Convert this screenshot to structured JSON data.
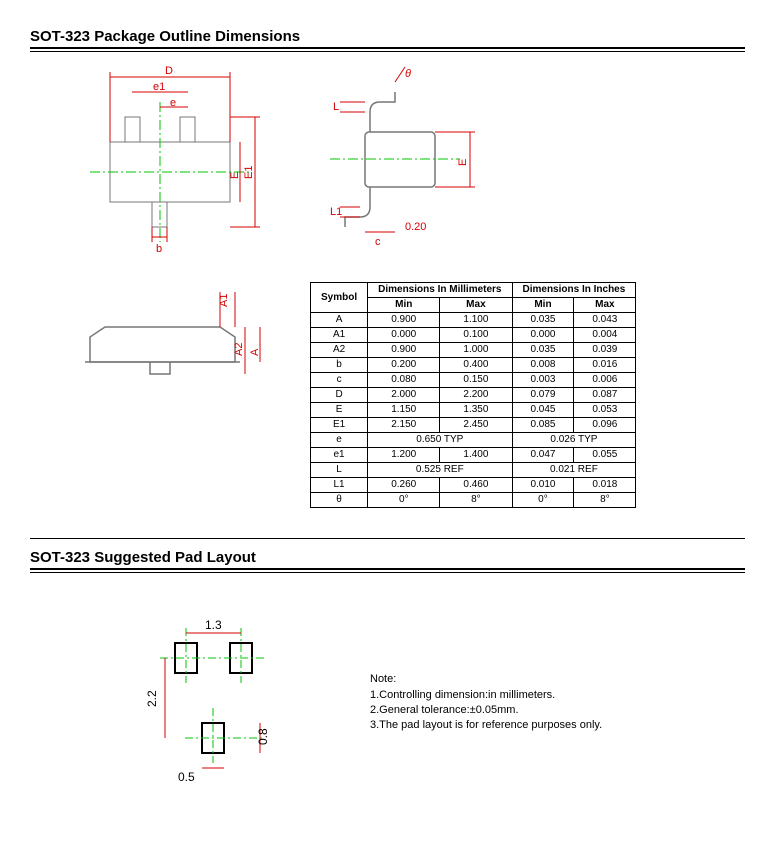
{
  "section1": {
    "title": "SOT-323 Package Outline Dimensions"
  },
  "section2": {
    "title": "SOT-323 Suggested Pad Layout"
  },
  "diagram": {
    "color_dim": "#d40000",
    "color_center": "#00c400",
    "color_outline": "#777777",
    "top": {
      "labels": {
        "D": "D",
        "e1": "e1",
        "e": "e",
        "b": "b",
        "E": "E",
        "E1": "E1"
      }
    },
    "side": {
      "labels": {
        "theta": "θ",
        "L": "L",
        "L1": "L1",
        "c": "c",
        "E": "E",
        "val020": "0.20"
      }
    },
    "height": {
      "labels": {
        "A": "A",
        "A1": "A1",
        "A2": "A2"
      }
    }
  },
  "table": {
    "hdr_symbol": "Symbol",
    "hdr_mm": "Dimensions In Millimeters",
    "hdr_in": "Dimensions In Inches",
    "hdr_min": "Min",
    "hdr_max": "Max",
    "rows": [
      {
        "sym": "A",
        "mm_min": "0.900",
        "mm_max": "1.100",
        "in_min": "0.035",
        "in_max": "0.043"
      },
      {
        "sym": "A1",
        "mm_min": "0.000",
        "mm_max": "0.100",
        "in_min": "0.000",
        "in_max": "0.004"
      },
      {
        "sym": "A2",
        "mm_min": "0.900",
        "mm_max": "1.000",
        "in_min": "0.035",
        "in_max": "0.039"
      },
      {
        "sym": "b",
        "mm_min": "0.200",
        "mm_max": "0.400",
        "in_min": "0.008",
        "in_max": "0.016"
      },
      {
        "sym": "c",
        "mm_min": "0.080",
        "mm_max": "0.150",
        "in_min": "0.003",
        "in_max": "0.006"
      },
      {
        "sym": "D",
        "mm_min": "2.000",
        "mm_max": "2.200",
        "in_min": "0.079",
        "in_max": "0.087"
      },
      {
        "sym": "E",
        "mm_min": "1.150",
        "mm_max": "1.350",
        "in_min": "0.045",
        "in_max": "0.053"
      },
      {
        "sym": "E1",
        "mm_min": "2.150",
        "mm_max": "2.450",
        "in_min": "0.085",
        "in_max": "0.096"
      }
    ],
    "row_e": {
      "sym": "e",
      "mm": "0.650 TYP",
      "in": "0.026 TYP"
    },
    "row_e1": {
      "sym": "e1",
      "mm_min": "1.200",
      "mm_max": "1.400",
      "in_min": "0.047",
      "in_max": "0.055"
    },
    "row_L": {
      "sym": "L",
      "mm": "0.525 REF",
      "in": "0.021 REF"
    },
    "row_L1": {
      "sym": "L1",
      "mm_min": "0.260",
      "mm_max": "0.460",
      "in_min": "0.010",
      "in_max": "0.018"
    },
    "row_th": {
      "sym": "θ",
      "mm_min": "0°",
      "mm_max": "8°",
      "in_min": "0°",
      "in_max": "8°"
    }
  },
  "pad": {
    "d13": "1.3",
    "d22": "2.2",
    "d08": "0.8",
    "d05": "0.5"
  },
  "notes": {
    "title": "Note:",
    "n1": "1.Controlling dimension:in millimeters.",
    "n2": "2.General tolerance:±0.05mm.",
    "n3": "3.The pad layout is for reference purposes only."
  }
}
